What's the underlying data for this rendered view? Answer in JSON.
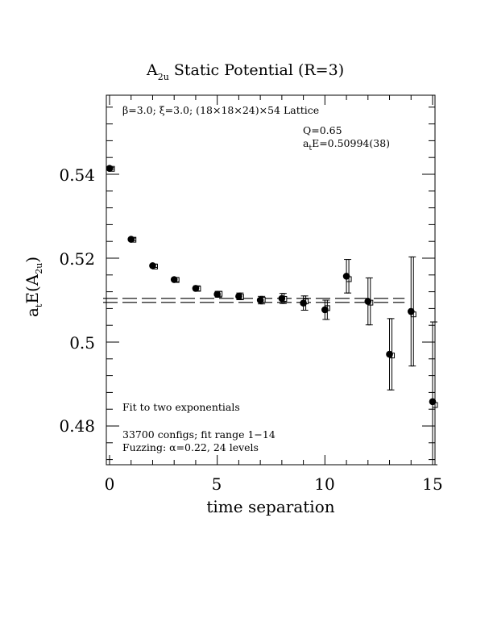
{
  "chart_data": {
    "type": "scatter",
    "title": {
      "main": "A",
      "sub": "2u",
      "rest": " Static Potential (R=3)"
    },
    "xlabel": "time separation",
    "ylabel": {
      "a": "a",
      "t": "t",
      "mid": "E(A",
      "sub": "2u",
      "end": ")"
    },
    "xlim": [
      0,
      15
    ],
    "ylim": [
      0.471,
      0.5585
    ],
    "x_ticks": [
      "0",
      "5",
      "10",
      "15"
    ],
    "y_ticks": [
      "0.48",
      "0.5",
      "0.52",
      "0.54"
    ],
    "lattice_label": "β=3.0; ξ=3.0; (18×18×24)×54 Lattice",
    "fit_info": {
      "q": "Q=0.65",
      "energy": {
        "a": "a",
        "t": "t",
        "rest": "E=0.50994(38)"
      }
    },
    "notes": {
      "fit_type": "Fit to two exponentials",
      "configs": "33700 configs; fit range 1−14",
      "fuzzing": "Fuzzing: α=0.22, 24 levels"
    },
    "fit": {
      "center": 0.50994,
      "err": 0.00038,
      "x_range": [
        0,
        13.4
      ]
    },
    "series": [
      {
        "marker": "filled-circle",
        "points": [
          {
            "x": 0,
            "y": 0.5414,
            "err": 0.0002
          },
          {
            "x": 1,
            "y": 0.5245,
            "err": 0.0003
          },
          {
            "x": 2,
            "y": 0.5182,
            "err": 0.0004
          },
          {
            "x": 3,
            "y": 0.5149,
            "err": 0.0005
          },
          {
            "x": 4,
            "y": 0.5128,
            "err": 0.0006
          },
          {
            "x": 5,
            "y": 0.5114,
            "err": 0.0007
          },
          {
            "x": 6,
            "y": 0.5109,
            "err": 0.0008
          },
          {
            "x": 7,
            "y": 0.51,
            "err": 0.0009
          },
          {
            "x": 8,
            "y": 0.5104,
            "err": 0.0012
          },
          {
            "x": 9,
            "y": 0.5093,
            "err": 0.0017
          },
          {
            "x": 10,
            "y": 0.5077,
            "err": 0.0023
          },
          {
            "x": 11,
            "y": 0.5157,
            "err": 0.004
          },
          {
            "x": 12,
            "y": 0.5097,
            "err": 0.0056
          },
          {
            "x": 13,
            "y": 0.4971,
            "err": 0.0085
          },
          {
            "x": 14,
            "y": 0.5073,
            "err": 0.013
          },
          {
            "x": 15,
            "y": 0.4858,
            "err": 0.019
          }
        ]
      },
      {
        "marker": "open-square",
        "points": [
          {
            "x": 0,
            "y": 0.5413
          },
          {
            "x": 1,
            "y": 0.5244
          },
          {
            "x": 2,
            "y": 0.518
          },
          {
            "x": 3,
            "y": 0.5148
          },
          {
            "x": 4,
            "y": 0.5127
          },
          {
            "x": 5,
            "y": 0.5115
          },
          {
            "x": 6,
            "y": 0.5108
          },
          {
            "x": 7,
            "y": 0.5101
          },
          {
            "x": 8,
            "y": 0.5103
          },
          {
            "x": 9,
            "y": 0.5097
          },
          {
            "x": 10,
            "y": 0.5081
          },
          {
            "x": 11,
            "y": 0.515
          },
          {
            "x": 12,
            "y": 0.5094
          },
          {
            "x": 13,
            "y": 0.4968
          },
          {
            "x": 14,
            "y": 0.5066
          },
          {
            "x": 15,
            "y": 0.485
          }
        ]
      }
    ]
  }
}
